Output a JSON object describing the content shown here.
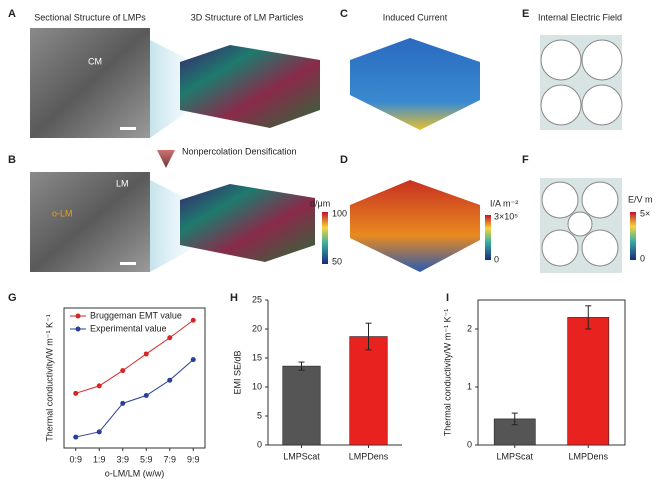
{
  "panel_labels": [
    "A",
    "B",
    "C",
    "D",
    "E",
    "F",
    "G",
    "H",
    "I"
  ],
  "texts": {
    "a_title": "Sectional Structure of LMPs",
    "a2_title": "3D Structure of LM Particles",
    "c_title": "Induced Current",
    "e_title": "Internal Electric Field",
    "arrow": "Nonpercolation Densification",
    "cm": "CM",
    "lm": "LM",
    "olm": "o-LM"
  },
  "colorbars": [
    {
      "label": "d/μm",
      "top": "100",
      "bottom": "50"
    },
    {
      "label": "I/A m⁻²",
      "top": "3×10⁵",
      "bottom": "0"
    },
    {
      "label": "E/V m",
      "top": "5×",
      "bottom": "0"
    }
  ],
  "chart_data": [
    {
      "type": "line",
      "categories": [
        "0:9",
        "1:9",
        "3:9",
        "5:9",
        "7:9",
        "9:9"
      ],
      "x_label": "o-LM/LM (w/w)",
      "y_label": "Thermal conductivity/W m⁻¹ K⁻¹",
      "ylim": [
        0.2,
        3.4
      ],
      "series": [
        {
          "name": "Bruggeman EMT value",
          "color": "#d62728",
          "values": [
            1.45,
            1.62,
            1.97,
            2.35,
            2.72,
            3.12
          ]
        },
        {
          "name": "Experimental value",
          "color": "#2a3f9a",
          "values": [
            0.45,
            0.57,
            1.22,
            1.4,
            1.75,
            2.22
          ]
        }
      ]
    },
    {
      "type": "bar",
      "categories": [
        "LMPScat",
        "LMPDens"
      ],
      "y_label": "EMI SE/dB",
      "values": [
        13.6,
        18.7
      ],
      "errors": [
        0.7,
        2.3
      ],
      "colors": [
        "#555555",
        "#e8221f"
      ],
      "ylim": [
        0,
        25
      ],
      "yticks": [
        0,
        5,
        10,
        15,
        20,
        25
      ]
    },
    {
      "type": "bar",
      "categories": [
        "LMPScat",
        "LMPDens"
      ],
      "y_label": "Thermal conductivity/W m⁻¹ K⁻¹",
      "values": [
        0.45,
        2.2
      ],
      "errors": [
        0.1,
        0.2
      ],
      "colors": [
        "#555555",
        "#e8221f"
      ],
      "ylim": [
        0,
        2.5
      ],
      "yticks": [
        0,
        1,
        2
      ]
    }
  ]
}
